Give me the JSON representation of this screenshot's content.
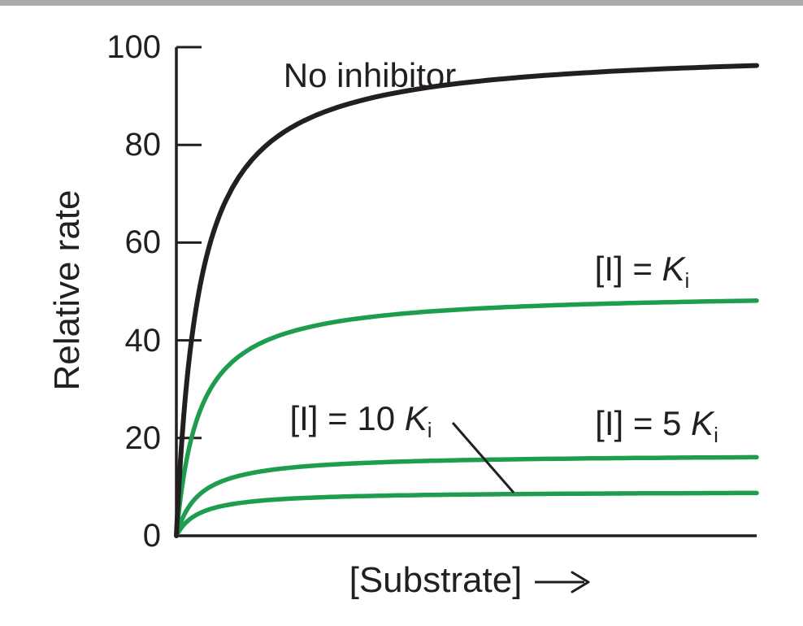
{
  "figure": {
    "background": "#ffffff",
    "top_border_color": "#ababab",
    "ink_color": "#231f20",
    "inhibitor_color": "#1f9d4f"
  },
  "labels": {
    "no_inhibitor": "No inhibitor",
    "ki": {
      "prefix": "[I] = ",
      "symbol": "K",
      "subscript": "i"
    },
    "ki10": {
      "prefix": "[I] = 10 ",
      "symbol": "K",
      "subscript": "i"
    },
    "ki5": {
      "prefix": "[I] = 5 ",
      "symbol": "K",
      "subscript": "i"
    }
  },
  "chart_data": {
    "type": "line",
    "title": "",
    "model": "Michaelis-Menten saturation curves with noncompetitive inhibitor",
    "x_axis": {
      "label": "[Substrate]",
      "arrow": true,
      "numeric_ticks": false
    },
    "y_axis": {
      "label": "Relative rate",
      "ticks": [
        0,
        20,
        40,
        60,
        80,
        100
      ],
      "range": [
        0,
        100
      ]
    },
    "grid": false,
    "legend": "inline curve labels",
    "km_fraction_of_x_range": 0.039,
    "series": [
      {
        "name": "No inhibitor",
        "vmax": 100,
        "plateau_at_right_edge": 96,
        "color": "#231f20",
        "width": 6
      },
      {
        "name": "[I] = Ki",
        "vmax": 50,
        "plateau_at_right_edge": 48,
        "color": "#1f9d4f",
        "width": 5.5
      },
      {
        "name": "[I] = 5 Ki",
        "vmax": 16.7,
        "plateau_at_right_edge": 16,
        "color": "#1f9d4f",
        "width": 5.5
      },
      {
        "name": "[I] = 10 Ki",
        "vmax": 9.1,
        "plateau_at_right_edge": 8.5,
        "color": "#1f9d4f",
        "width": 5.5
      }
    ]
  }
}
